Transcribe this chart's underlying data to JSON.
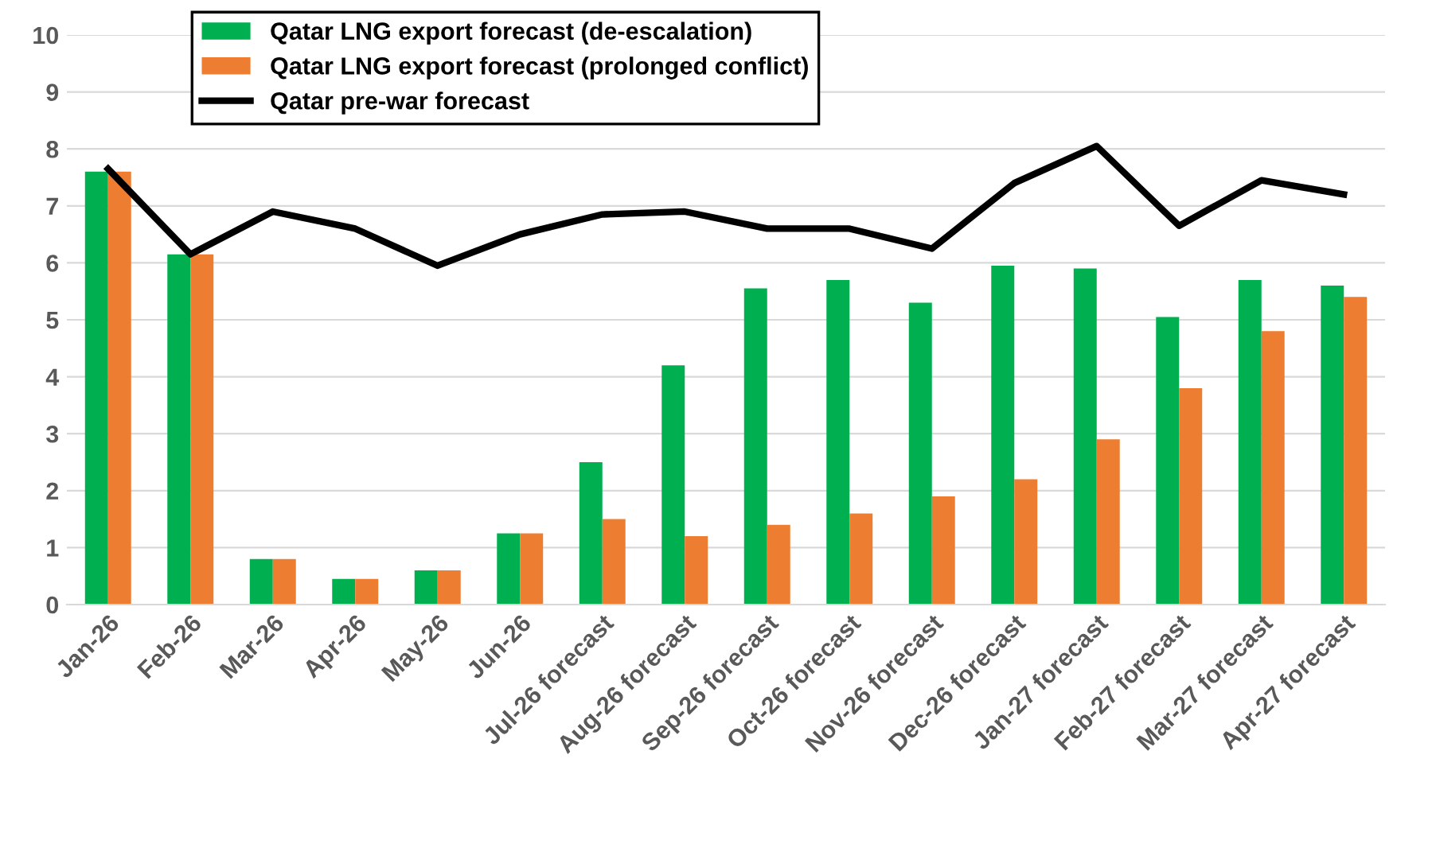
{
  "chart_data": {
    "type": "bar",
    "categories": [
      "Jan-26",
      "Feb-26",
      "Mar-26",
      "Apr-26",
      "May-26",
      "Jun-26",
      "Jul-26 forecast",
      "Aug-26 forecast",
      "Sep-26 forecast",
      "Oct-26 forecast",
      "Nov-26 forecast",
      "Dec-26 forecast",
      "Jan-27 forecast",
      "Feb-27 forecast",
      "Mar-27 forecast",
      "Apr-27 forecast"
    ],
    "series": [
      {
        "name": "Qatar LNG export forecast (de-escalation)",
        "color": "#00b050",
        "values": [
          7.6,
          6.15,
          0.8,
          0.45,
          0.6,
          1.25,
          2.5,
          4.2,
          5.55,
          5.7,
          5.3,
          5.95,
          5.9,
          5.05,
          5.7,
          5.6
        ]
      },
      {
        "name": "Qatar LNG export forecast (prolonged conflict)",
        "color": "#ed7d31",
        "values": [
          7.6,
          6.15,
          0.8,
          0.45,
          0.6,
          1.25,
          1.5,
          1.2,
          1.4,
          1.6,
          1.9,
          2.2,
          2.9,
          3.8,
          4.8,
          5.4
        ]
      },
      {
        "name": "Qatar pre-war forecast",
        "type": "line",
        "color": "#000000",
        "values": [
          7.65,
          6.15,
          6.9,
          6.6,
          5.95,
          6.5,
          6.85,
          6.9,
          6.6,
          6.6,
          6.25,
          7.4,
          8.05,
          6.65,
          7.45,
          7.2
        ]
      }
    ],
    "ylim": [
      0,
      10
    ],
    "yticks": [
      0,
      1,
      2,
      3,
      4,
      5,
      6,
      7,
      8,
      9,
      10
    ],
    "grid": "y",
    "legend": "top",
    "marker": "none",
    "line_style": "solid"
  }
}
